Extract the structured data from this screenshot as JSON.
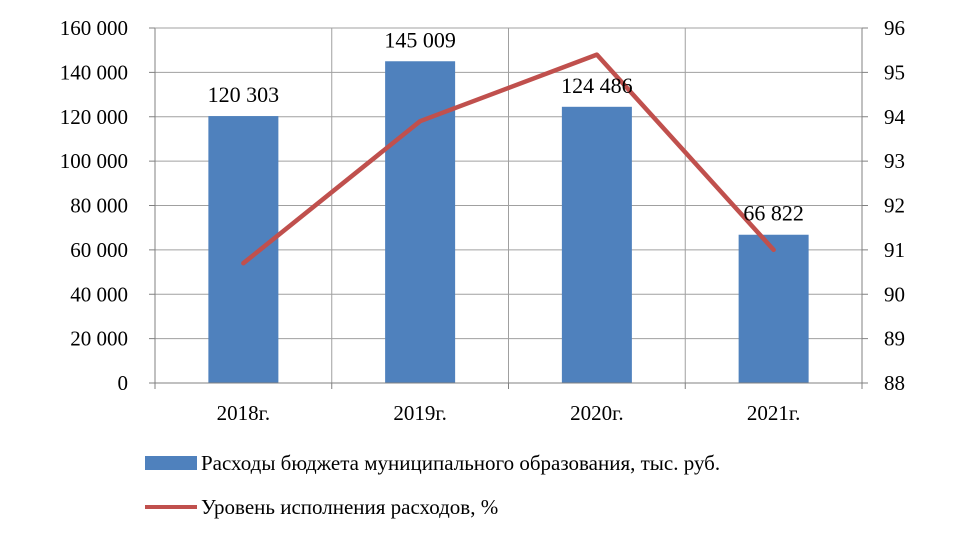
{
  "chart_data": {
    "type": "bar",
    "categories": [
      "2018г.",
      "2019г.",
      "2020г.",
      "2021г."
    ],
    "series": [
      {
        "name": "Расходы бюджета муниципального образования, тыс. руб.",
        "type": "bar",
        "axis": "left",
        "values": [
          120303,
          145009,
          124486,
          66822
        ],
        "labels": [
          "120 303",
          "145 009",
          "124 486",
          "66 822"
        ],
        "color": "#4f81bd"
      },
      {
        "name": "Уровень исполнения расходов, %",
        "type": "line",
        "axis": "right",
        "values": [
          90.7,
          93.9,
          95.4,
          91.0
        ],
        "color": "#c0504d"
      }
    ],
    "y_left": {
      "min": 0,
      "max": 160000,
      "ticks": [
        "0",
        "20 000",
        "40 000",
        "60 000",
        "80 000",
        "100 000",
        "120 000",
        "140 000",
        "160 000"
      ]
    },
    "y_right": {
      "min": 88,
      "max": 96,
      "ticks": [
        "88",
        "89",
        "90",
        "91",
        "92",
        "93",
        "94",
        "95",
        "96"
      ]
    },
    "grid": true,
    "legend_position": "bottom"
  }
}
